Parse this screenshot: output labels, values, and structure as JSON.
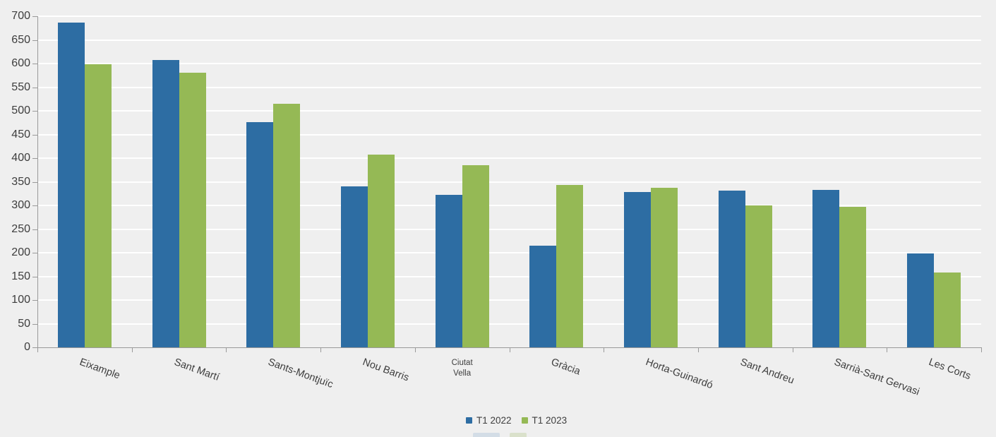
{
  "chart_data": {
    "type": "bar",
    "title": "",
    "xlabel": "",
    "ylabel": "",
    "categories": [
      "Eixample",
      "Sant Martí",
      "Sants-Montjuïc",
      "Nou Barris",
      "Ciutat Vella",
      "Gràcia",
      "Horta-Guinardó",
      "Sant Andreu",
      "Sarrià-Sant Gervasi",
      "Les Corts"
    ],
    "series": [
      {
        "name": "T1 2022",
        "color": "#2d6da3",
        "values": [
          686,
          608,
          476,
          340,
          322,
          215,
          328,
          332,
          333,
          198
        ]
      },
      {
        "name": "T1 2023",
        "color": "#95b955",
        "values": [
          598,
          580,
          515,
          408,
          385,
          343,
          338,
          300,
          297,
          158
        ]
      }
    ],
    "ylim": [
      0,
      700
    ],
    "ytick_step": 50,
    "yticks": [
      0,
      50,
      100,
      150,
      200,
      250,
      300,
      350,
      400,
      450,
      500,
      550,
      600,
      650,
      700
    ],
    "grid": true,
    "legend_position": "bottom-center",
    "horizontal_label_indexes": [
      4
    ]
  },
  "legend": {
    "items": [
      {
        "label": "T1 2022",
        "color": "#2d6da3"
      },
      {
        "label": "T1 2023",
        "color": "#95b955"
      }
    ]
  },
  "colors": {
    "background": "#efefef",
    "gridline": "#ffffff",
    "axis": "#9a9a9a",
    "text": "#3d3d3d"
  },
  "bottom_edge": {
    "items": [
      {
        "name": "partial-element-blue",
        "color": "#d3dde6"
      },
      {
        "name": "partial-element-green",
        "color": "#dae1cb"
      }
    ]
  }
}
